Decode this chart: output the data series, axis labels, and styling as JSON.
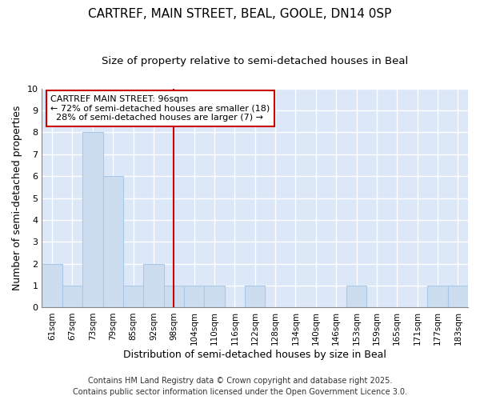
{
  "title": "CARTREF, MAIN STREET, BEAL, GOOLE, DN14 0SP",
  "subtitle": "Size of property relative to semi-detached houses in Beal",
  "xlabel": "Distribution of semi-detached houses by size in Beal",
  "ylabel": "Number of semi-detached properties",
  "categories": [
    "61sqm",
    "67sqm",
    "73sqm",
    "79sqm",
    "85sqm",
    "92sqm",
    "98sqm",
    "104sqm",
    "110sqm",
    "116sqm",
    "122sqm",
    "128sqm",
    "134sqm",
    "140sqm",
    "146sqm",
    "153sqm",
    "159sqm",
    "165sqm",
    "171sqm",
    "177sqm",
    "183sqm"
  ],
  "values": [
    2,
    1,
    8,
    6,
    1,
    2,
    1,
    1,
    1,
    0,
    1,
    0,
    0,
    0,
    0,
    1,
    0,
    0,
    0,
    1,
    1
  ],
  "bar_color": "#ccddf0",
  "bar_edge_color": "#a8c8e8",
  "property_line_index": 6,
  "annotation_label": "CARTREF MAIN STREET: 96sqm",
  "pct_smaller": 72,
  "n_smaller": 18,
  "pct_larger": 28,
  "n_larger": 7,
  "line_color": "#cc0000",
  "ylim": [
    0,
    10
  ],
  "yticks": [
    0,
    1,
    2,
    3,
    4,
    5,
    6,
    7,
    8,
    9,
    10
  ],
  "plot_bg_color": "#dce8f8",
  "fig_bg_color": "#ffffff",
  "grid_color": "#ffffff",
  "footer": "Contains HM Land Registry data © Crown copyright and database right 2025.\nContains public sector information licensed under the Open Government Licence 3.0.",
  "title_fontsize": 11,
  "subtitle_fontsize": 9.5,
  "axis_label_fontsize": 9,
  "tick_fontsize": 7.5,
  "footer_fontsize": 7
}
